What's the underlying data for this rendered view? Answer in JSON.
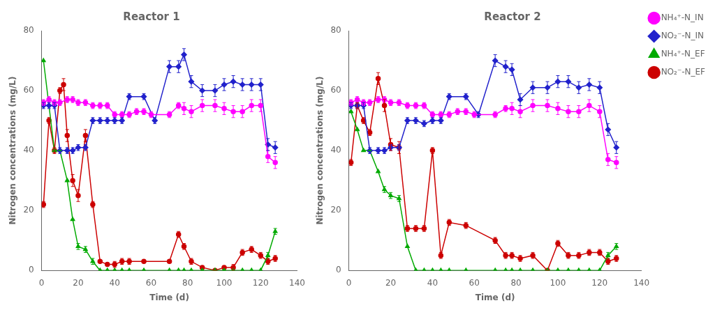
{
  "chart_data": [
    {
      "type": "line",
      "title": "Reactor 1",
      "x_label": "Time (d)",
      "y_label": "Nitrogen concentrations (mg/L)",
      "xlim": [
        0,
        140
      ],
      "ylim": [
        0,
        80
      ],
      "xticks": [
        0,
        20,
        40,
        60,
        80,
        100,
        120,
        140
      ],
      "yticks": [
        0,
        20,
        40,
        60,
        80
      ],
      "grid": false,
      "series": [
        {
          "name": "NH₄⁺-N_IN",
          "color": "#FF00FF",
          "marker": "circle",
          "x": [
            1,
            4,
            7,
            10,
            14,
            17,
            20,
            24,
            28,
            32,
            36,
            40,
            44,
            48,
            52,
            56,
            60,
            70,
            75,
            78,
            82,
            88,
            95,
            100,
            105,
            110,
            115,
            120,
            124,
            128
          ],
          "values": [
            56,
            57,
            56,
            56,
            57,
            57,
            56,
            56,
            55,
            55,
            55,
            52,
            52,
            52,
            53,
            53,
            52,
            52,
            55,
            54,
            53,
            55,
            55,
            54,
            53,
            53,
            55,
            55,
            38,
            36
          ],
          "errors": [
            1,
            1,
            1,
            1,
            1,
            1,
            1,
            1,
            1,
            1,
            1,
            1,
            1,
            1,
            1,
            1,
            1,
            1,
            1,
            2,
            2,
            2,
            2,
            2,
            2,
            2,
            2,
            2,
            2,
            2
          ]
        },
        {
          "name": "NO₂⁻-N_IN",
          "color": "#2222CC",
          "marker": "diamond",
          "x": [
            1,
            4,
            7,
            10,
            14,
            17,
            20,
            24,
            28,
            32,
            36,
            40,
            44,
            48,
            56,
            62,
            70,
            75,
            78,
            82,
            88,
            95,
            100,
            105,
            110,
            115,
            120,
            124,
            128
          ],
          "values": [
            55,
            55,
            55,
            40,
            40,
            40,
            41,
            41,
            50,
            50,
            50,
            50,
            50,
            58,
            58,
            50,
            68,
            68,
            72,
            63,
            60,
            60,
            62,
            63,
            62,
            62,
            62,
            42,
            41
          ],
          "errors": [
            1,
            1,
            1,
            1,
            1,
            1,
            1,
            1,
            1,
            1,
            1,
            1,
            1,
            1,
            1,
            1,
            2,
            2,
            2,
            2,
            2,
            2,
            2,
            2,
            2,
            2,
            2,
            2,
            2
          ]
        },
        {
          "name": "NH₄⁺-N_EF",
          "color": "#00AA00",
          "marker": "triangle",
          "x": [
            1,
            7,
            10,
            14,
            17,
            20,
            24,
            28,
            32,
            36,
            40,
            44,
            48,
            56,
            70,
            75,
            78,
            82,
            88,
            95,
            100,
            105,
            110,
            115,
            120,
            124,
            128
          ],
          "values": [
            70,
            40,
            40,
            30,
            17,
            8,
            7,
            3,
            0,
            0,
            0,
            0,
            0,
            0,
            0,
            0,
            0,
            0,
            0,
            0,
            0,
            0,
            0,
            0,
            0,
            5,
            13
          ],
          "errors": [
            0,
            0,
            0,
            0,
            0,
            1,
            1,
            1,
            0,
            0,
            0,
            0,
            0,
            0,
            0,
            0,
            0,
            0,
            0,
            0,
            0,
            0,
            0,
            0,
            0,
            1,
            1
          ]
        },
        {
          "name": "NO₂⁻-N_EF",
          "color": "#CC0000",
          "marker": "circle",
          "x": [
            1,
            4,
            7,
            10,
            12,
            14,
            17,
            20,
            24,
            28,
            32,
            36,
            40,
            44,
            48,
            56,
            70,
            75,
            78,
            82,
            88,
            95,
            100,
            105,
            110,
            115,
            120,
            124,
            128
          ],
          "values": [
            22,
            50,
            40,
            60,
            62,
            45,
            30,
            25,
            45,
            22,
            3,
            2,
            2,
            3,
            3,
            3,
            3,
            12,
            8,
            3,
            1,
            0,
            1,
            1,
            6,
            7,
            5,
            3,
            4
          ],
          "errors": [
            1,
            1,
            1,
            1,
            2,
            2,
            2,
            2,
            2,
            1,
            0,
            0,
            1,
            1,
            1,
            0,
            0,
            1,
            1,
            1,
            0,
            0,
            0,
            1,
            1,
            1,
            1,
            1,
            1
          ]
        }
      ]
    },
    {
      "type": "line",
      "title": "Reactor 2",
      "x_label": "Time (d)",
      "y_label": "Nitrogen concentrations (mg/L)",
      "xlim": [
        0,
        140
      ],
      "ylim": [
        0,
        80
      ],
      "xticks": [
        0,
        20,
        40,
        60,
        80,
        100,
        120,
        140
      ],
      "yticks": [
        0,
        20,
        40,
        60,
        80
      ],
      "grid": false,
      "legend": "right",
      "series": [
        {
          "name": "NH₄⁺-N_IN",
          "color": "#FF00FF",
          "marker": "circle",
          "x": [
            1,
            4,
            7,
            10,
            14,
            17,
            20,
            24,
            28,
            32,
            36,
            40,
            44,
            48,
            52,
            56,
            60,
            70,
            75,
            78,
            82,
            88,
            95,
            100,
            105,
            110,
            115,
            120,
            124,
            128
          ],
          "values": [
            56,
            57,
            56,
            56,
            57,
            57,
            56,
            56,
            55,
            55,
            55,
            52,
            52,
            52,
            53,
            53,
            52,
            52,
            54,
            54,
            53,
            55,
            55,
            54,
            53,
            53,
            55,
            53,
            37,
            36
          ],
          "errors": [
            1,
            1,
            1,
            1,
            1,
            1,
            1,
            1,
            1,
            1,
            1,
            1,
            1,
            1,
            1,
            1,
            1,
            1,
            1,
            2,
            2,
            2,
            2,
            2,
            2,
            2,
            2,
            2,
            2,
            2
          ]
        },
        {
          "name": "NO₂⁻-N_IN",
          "color": "#2222CC",
          "marker": "diamond",
          "x": [
            1,
            4,
            7,
            10,
            14,
            17,
            20,
            24,
            28,
            32,
            36,
            40,
            44,
            48,
            56,
            62,
            70,
            75,
            78,
            82,
            88,
            95,
            100,
            105,
            110,
            115,
            120,
            124,
            128
          ],
          "values": [
            55,
            55,
            55,
            40,
            40,
            40,
            41,
            41,
            50,
            50,
            49,
            50,
            50,
            58,
            58,
            52,
            70,
            68,
            67,
            57,
            61,
            61,
            63,
            63,
            61,
            62,
            61,
            47,
            41
          ],
          "errors": [
            1,
            1,
            1,
            1,
            1,
            1,
            1,
            1,
            1,
            1,
            1,
            1,
            1,
            1,
            1,
            1,
            2,
            2,
            2,
            2,
            2,
            2,
            2,
            2,
            2,
            2,
            2,
            2,
            2
          ]
        },
        {
          "name": "NH₄⁺-N_EF",
          "color": "#00AA00",
          "marker": "triangle",
          "x": [
            1,
            4,
            7,
            10,
            14,
            17,
            20,
            24,
            28,
            32,
            36,
            40,
            44,
            48,
            56,
            70,
            75,
            78,
            82,
            88,
            95,
            100,
            105,
            110,
            115,
            120,
            124,
            128
          ],
          "values": [
            53,
            47,
            40,
            40,
            33,
            27,
            25,
            24,
            8,
            0,
            0,
            0,
            0,
            0,
            0,
            0,
            0,
            0,
            0,
            0,
            0,
            0,
            0,
            0,
            0,
            0,
            5,
            8
          ],
          "errors": [
            0,
            0,
            0,
            0,
            0,
            1,
            1,
            1,
            0,
            0,
            0,
            0,
            0,
            0,
            0,
            0,
            0,
            0,
            0,
            0,
            0,
            0,
            0,
            0,
            0,
            0,
            1,
            1
          ]
        },
        {
          "name": "NO₂⁻-N_EF",
          "color": "#CC0000",
          "marker": "circle",
          "x": [
            1,
            4,
            7,
            10,
            14,
            17,
            20,
            24,
            28,
            32,
            36,
            40,
            44,
            48,
            56,
            70,
            75,
            78,
            82,
            88,
            95,
            100,
            105,
            110,
            115,
            120,
            124,
            128
          ],
          "values": [
            36,
            55,
            50,
            46,
            64,
            55,
            42,
            41,
            14,
            14,
            14,
            40,
            5,
            16,
            15,
            10,
            5,
            5,
            4,
            5,
            0,
            9,
            5,
            5,
            6,
            6,
            3,
            4
          ],
          "errors": [
            1,
            1,
            1,
            1,
            2,
            2,
            2,
            2,
            1,
            1,
            1,
            1,
            1,
            1,
            1,
            1,
            1,
            1,
            1,
            1,
            0,
            1,
            1,
            1,
            1,
            1,
            1,
            1
          ]
        }
      ]
    }
  ]
}
